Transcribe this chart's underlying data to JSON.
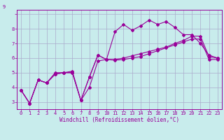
{
  "xlabel": "Windchill (Refroidissement éolien,°C)",
  "bg_color": "#c8ecec",
  "line_color": "#990099",
  "grid_color": "#aaaacc",
  "spine_color": "#990099",
  "x": [
    0,
    1,
    2,
    3,
    4,
    5,
    6,
    7,
    8,
    9,
    10,
    11,
    12,
    13,
    14,
    15,
    16,
    17,
    18,
    19,
    20,
    21,
    22,
    23
  ],
  "series1": [
    3.8,
    2.9,
    4.5,
    4.3,
    4.9,
    5.0,
    5.0,
    3.1,
    4.7,
    6.2,
    5.9,
    7.8,
    8.3,
    7.9,
    8.2,
    8.6,
    8.3,
    8.5,
    8.1,
    7.6,
    7.6,
    7.0,
    6.2,
    6.0
  ],
  "series2": [
    3.8,
    2.9,
    4.5,
    4.3,
    4.9,
    5.0,
    5.0,
    3.1,
    4.7,
    6.2,
    5.9,
    5.9,
    6.0,
    6.15,
    6.3,
    6.45,
    6.6,
    6.75,
    7.0,
    7.2,
    7.5,
    7.5,
    6.1,
    6.0
  ],
  "series3": [
    3.8,
    2.9,
    4.5,
    4.3,
    5.0,
    5.0,
    5.1,
    3.1,
    4.0,
    5.8,
    5.9,
    5.85,
    5.9,
    6.0,
    6.1,
    6.3,
    6.5,
    6.7,
    6.9,
    7.1,
    7.3,
    7.3,
    5.9,
    5.9
  ],
  "ylim": [
    2.5,
    9.3
  ],
  "xlim": [
    -0.5,
    23.5
  ],
  "yticks": [
    3,
    4,
    5,
    6,
    7,
    8,
    9
  ],
  "xticks": [
    0,
    1,
    2,
    3,
    4,
    5,
    6,
    7,
    8,
    9,
    10,
    11,
    12,
    13,
    14,
    15,
    16,
    17,
    18,
    19,
    20,
    21,
    22,
    23
  ],
  "ytick_label": "9",
  "ylabel_x_offset": -0.055,
  "ylabel_y_offset": 1.01,
  "tick_fontsize": 5.0,
  "xlabel_fontsize": 5.5,
  "marker": "D",
  "markersize": 2.0,
  "linewidth": 0.8
}
